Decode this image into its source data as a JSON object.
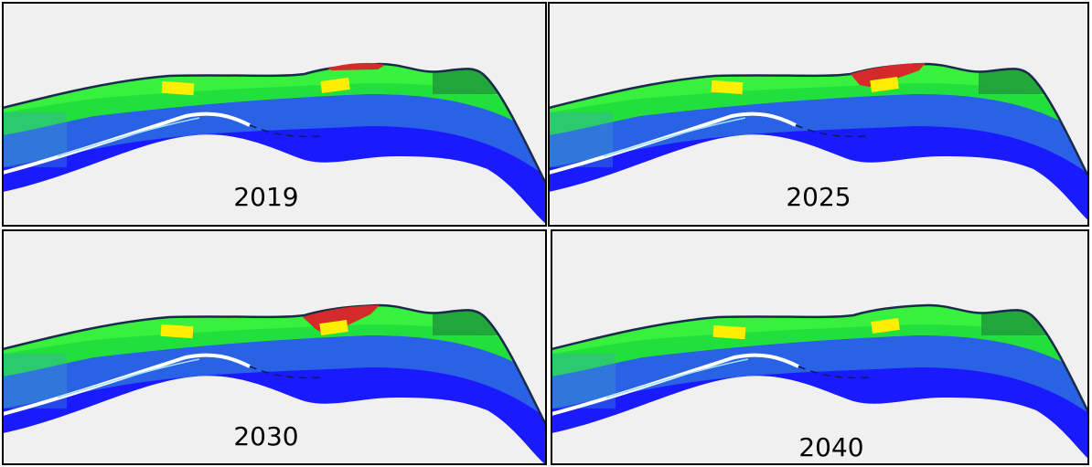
{
  "panels": [
    {
      "label": "2019"
    },
    {
      "label": "2025"
    },
    {
      "label": "2030"
    },
    {
      "label": "2040"
    }
  ]
}
